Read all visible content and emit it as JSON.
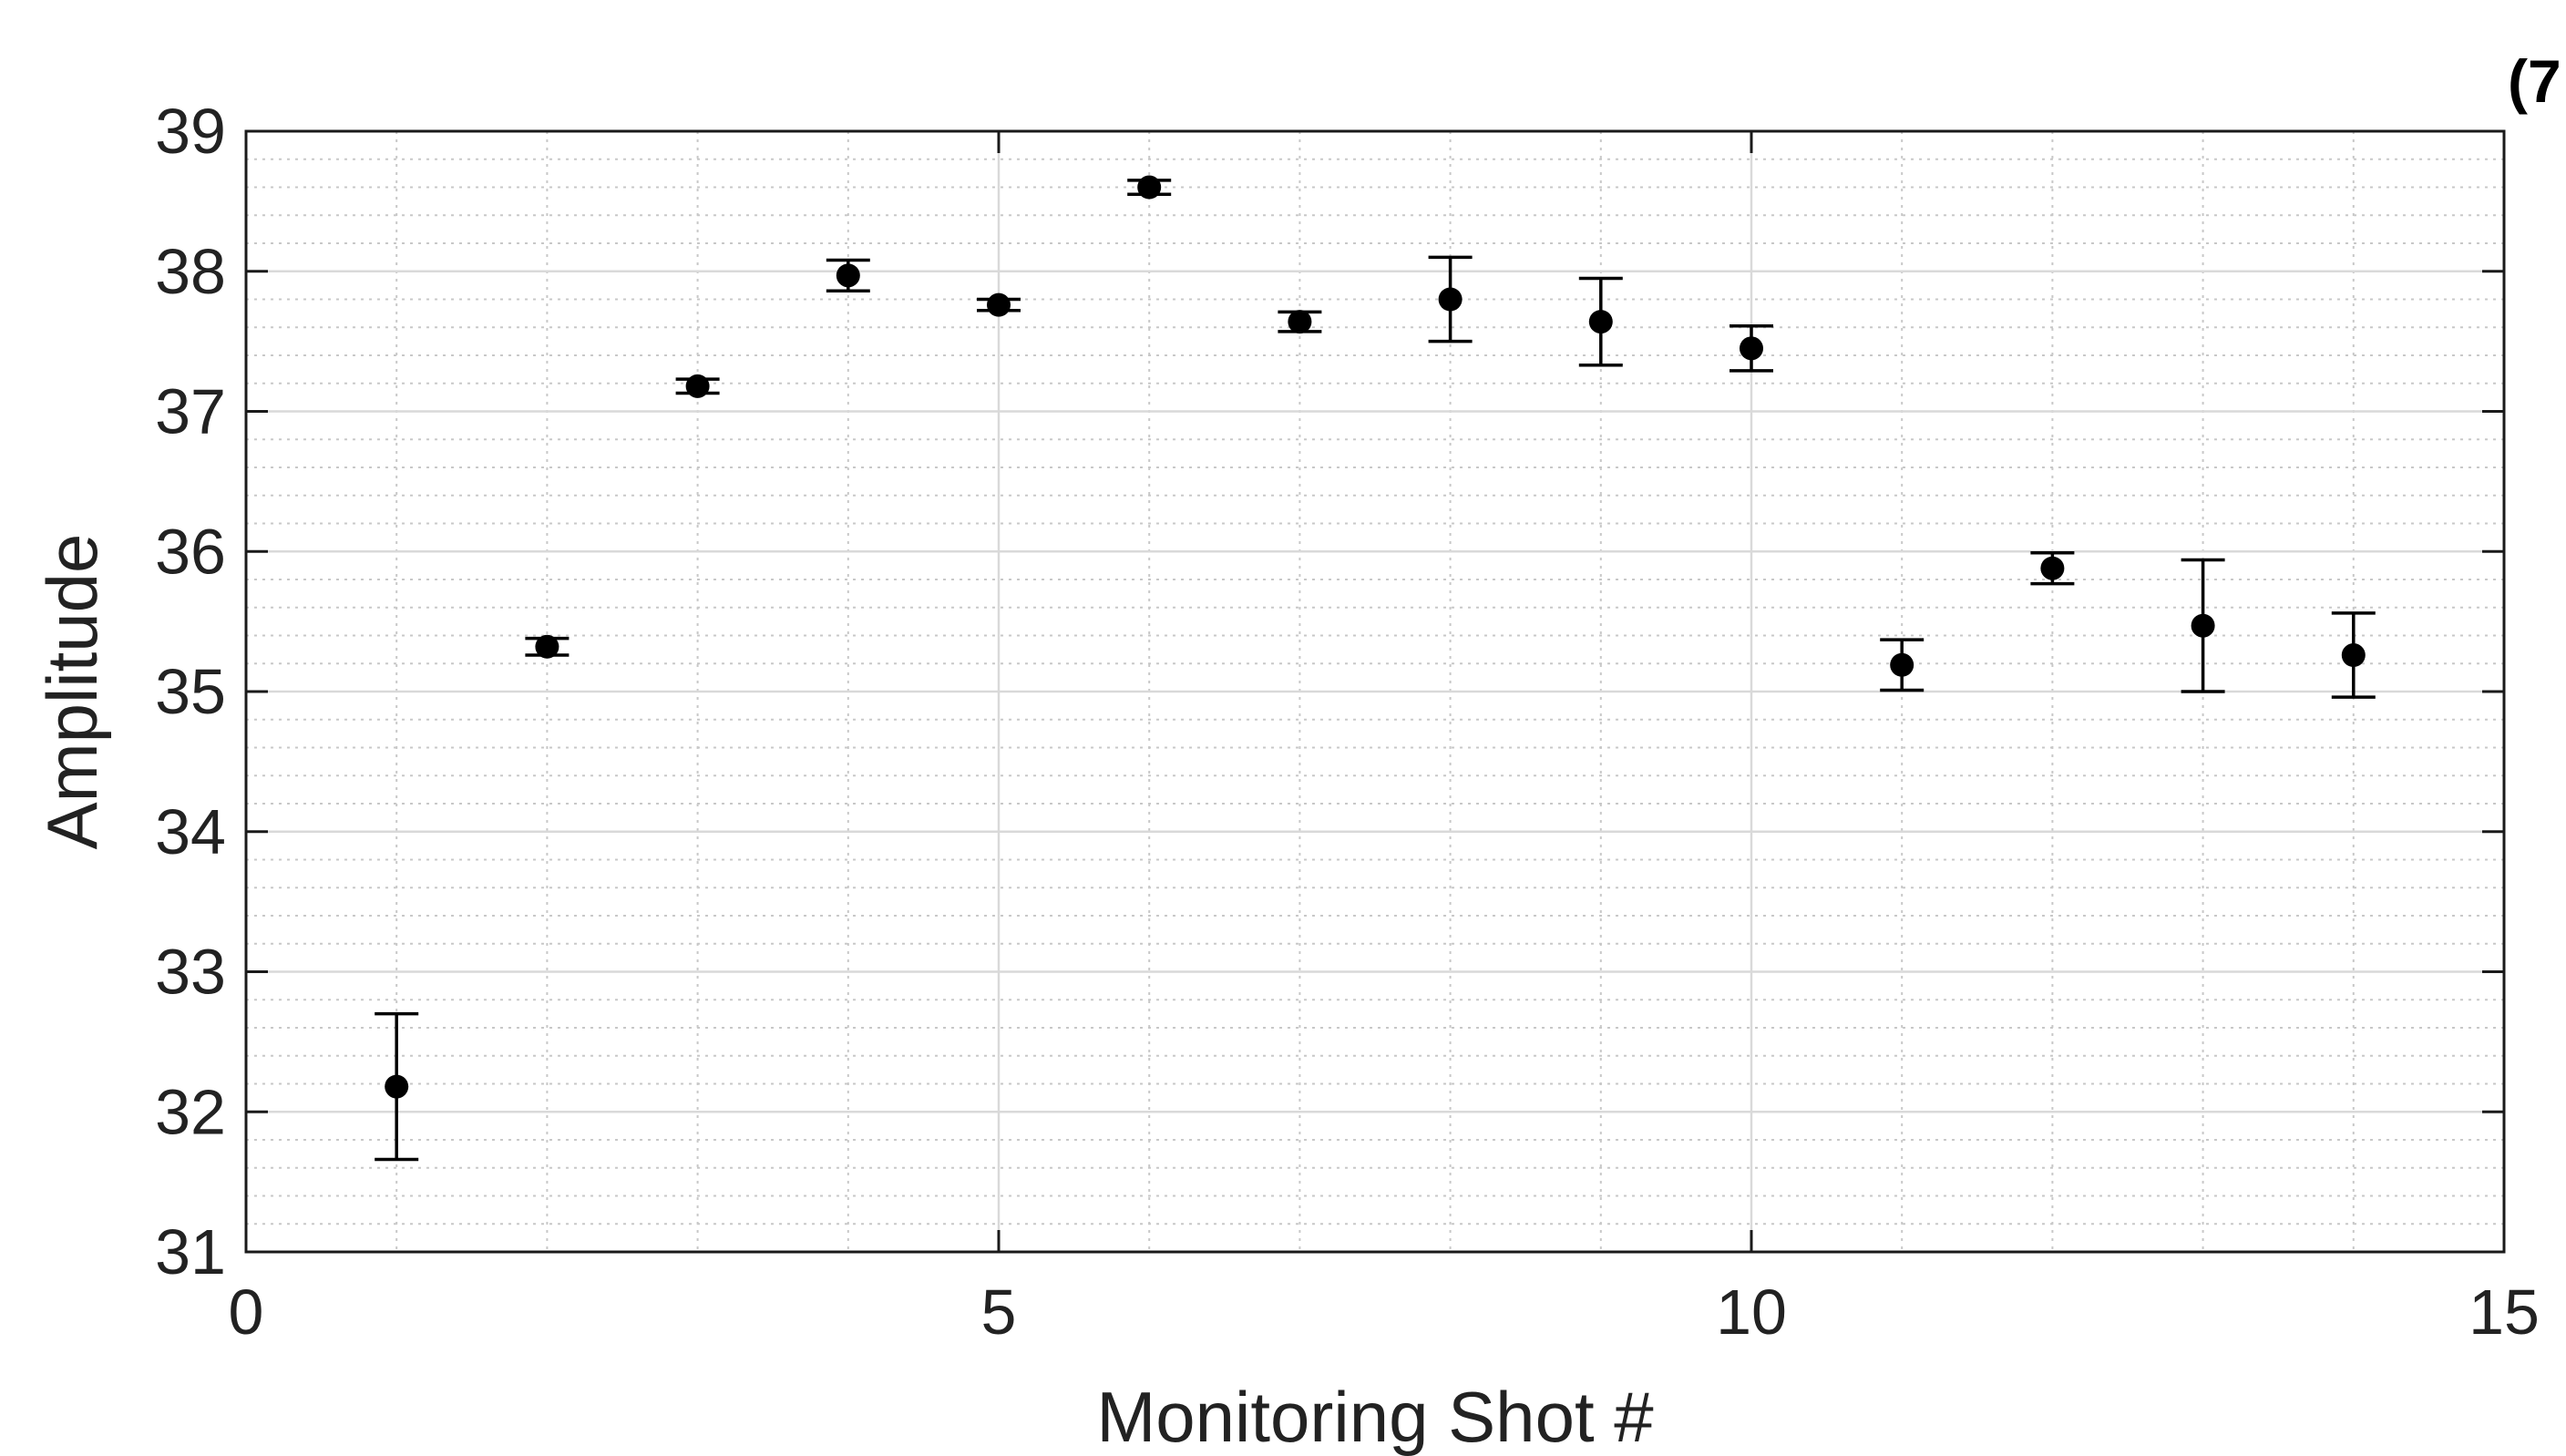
{
  "chart_data": {
    "type": "scatter",
    "title": "",
    "corner_label": "(7",
    "xlabel": "Monitoring Shot #",
    "ylabel": "Amplitude",
    "xlim": [
      0,
      15
    ],
    "ylim": [
      31,
      39
    ],
    "xticks": [
      0,
      5,
      10,
      15
    ],
    "yticks": [
      31,
      32,
      33,
      34,
      35,
      36,
      37,
      38,
      39
    ],
    "x_minor_step": 1,
    "y_minor_step": 0.2,
    "grid": true,
    "minor_grid": true,
    "error_bars": true,
    "marker_color": "#000000",
    "series": [
      {
        "x": [
          1,
          2,
          3,
          4,
          5,
          6,
          7,
          8,
          9,
          10,
          11,
          12,
          13,
          14
        ],
        "y": [
          32.18,
          35.32,
          37.18,
          37.97,
          37.76,
          38.6,
          37.64,
          37.8,
          37.64,
          37.45,
          35.19,
          35.88,
          35.47,
          35.26
        ],
        "err": [
          0.52,
          0.06,
          0.05,
          0.11,
          0.04,
          0.05,
          0.07,
          0.3,
          0.31,
          0.16,
          0.18,
          0.11,
          0.47,
          0.3
        ]
      }
    ]
  }
}
